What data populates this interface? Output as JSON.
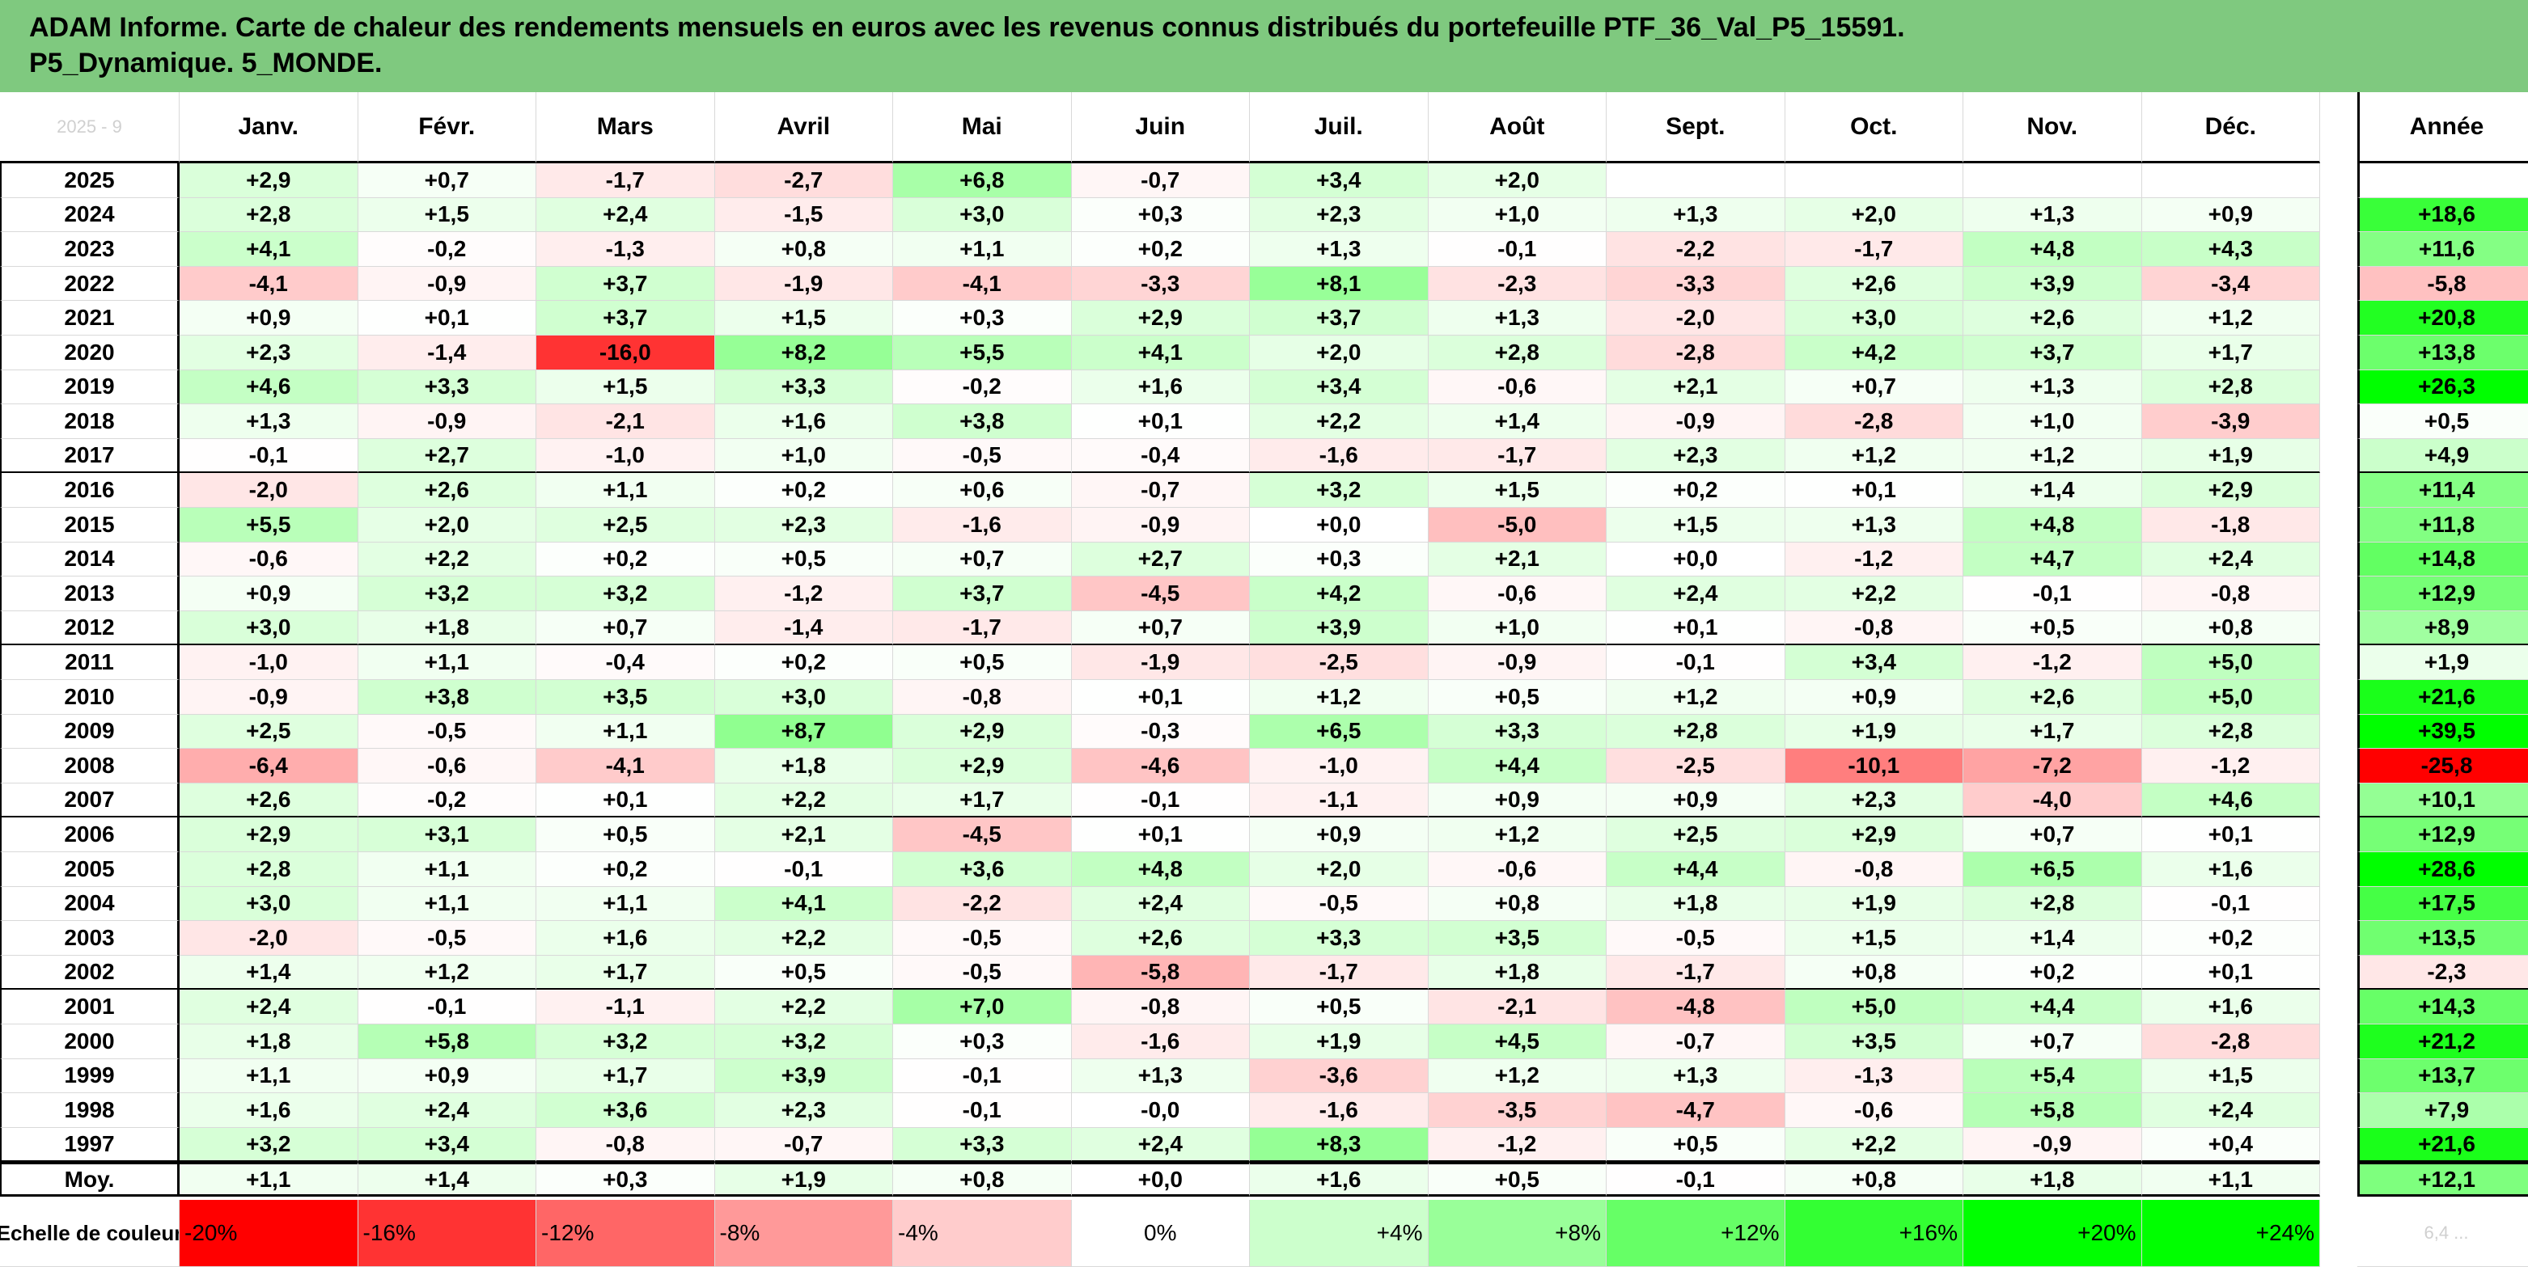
{
  "title": {
    "line1": "ADAM Informe. Carte de chaleur des rendements mensuels en euros avec les revenus connus distribués du portefeuille PTF_36_Val_P5_15591.",
    "line2": "P5_Dynamique. 5_MONDE."
  },
  "corner_text": "2025 - 9",
  "chart_data": {
    "type": "heatmap",
    "months": [
      "Janv.",
      "Févr.",
      "Mars",
      "Avril",
      "Mai",
      "Juin",
      "Juil.",
      "Août",
      "Sept.",
      "Oct.",
      "Nov.",
      "Déc."
    ],
    "annual_header": "Année",
    "rows": [
      {
        "year": "2025",
        "values": [
          "+2,9",
          "+0,7",
          "-1,7",
          "-2,7",
          "+6,8",
          "-0,7",
          "+3,4",
          "+2,0",
          "",
          "",
          "",
          ""
        ],
        "annual": ""
      },
      {
        "year": "2024",
        "values": [
          "+2,8",
          "+1,5",
          "+2,4",
          "-1,5",
          "+3,0",
          "+0,3",
          "+2,3",
          "+1,0",
          "+1,3",
          "+2,0",
          "+1,3",
          "+0,9"
        ],
        "annual": "+18,6"
      },
      {
        "year": "2023",
        "values": [
          "+4,1",
          "-0,2",
          "-1,3",
          "+0,8",
          "+1,1",
          "+0,2",
          "+1,3",
          "-0,1",
          "-2,2",
          "-1,7",
          "+4,8",
          "+4,3"
        ],
        "annual": "+11,6"
      },
      {
        "year": "2022",
        "values": [
          "-4,1",
          "-0,9",
          "+3,7",
          "-1,9",
          "-4,1",
          "-3,3",
          "+8,1",
          "-2,3",
          "-3,3",
          "+2,6",
          "+3,9",
          "-3,4"
        ],
        "annual": "-5,8"
      },
      {
        "year": "2021",
        "values": [
          "+0,9",
          "+0,1",
          "+3,7",
          "+1,5",
          "+0,3",
          "+2,9",
          "+3,7",
          "+1,3",
          "-2,0",
          "+3,0",
          "+2,6",
          "+1,2"
        ],
        "annual": "+20,8"
      },
      {
        "year": "2020",
        "values": [
          "+2,3",
          "-1,4",
          "-16,0",
          "+8,2",
          "+5,5",
          "+4,1",
          "+2,0",
          "+2,8",
          "-2,8",
          "+4,2",
          "+3,7",
          "+1,7"
        ],
        "annual": "+13,8"
      },
      {
        "year": "2019",
        "values": [
          "+4,6",
          "+3,3",
          "+1,5",
          "+3,3",
          "-0,2",
          "+1,6",
          "+3,4",
          "-0,6",
          "+2,1",
          "+0,7",
          "+1,3",
          "+2,8"
        ],
        "annual": "+26,3"
      },
      {
        "year": "2018",
        "values": [
          "+1,3",
          "-0,9",
          "-2,1",
          "+1,6",
          "+3,8",
          "+0,1",
          "+2,2",
          "+1,4",
          "-0,9",
          "-2,8",
          "+1,0",
          "-3,9"
        ],
        "annual": "+0,5"
      },
      {
        "year": "2017",
        "values": [
          "-0,1",
          "+2,7",
          "-1,0",
          "+1,0",
          "-0,5",
          "-0,4",
          "-1,6",
          "-1,7",
          "+2,3",
          "+1,2",
          "+1,2",
          "+1,9"
        ],
        "annual": "+4,9"
      },
      {
        "year": "2016",
        "values": [
          "-2,0",
          "+2,6",
          "+1,1",
          "+0,2",
          "+0,6",
          "-0,7",
          "+3,2",
          "+1,5",
          "+0,2",
          "+0,1",
          "+1,4",
          "+2,9"
        ],
        "annual": "+11,4"
      },
      {
        "year": "2015",
        "values": [
          "+5,5",
          "+2,0",
          "+2,5",
          "+2,3",
          "-1,6",
          "-0,9",
          "+0,0",
          "-5,0",
          "+1,5",
          "+1,3",
          "+4,8",
          "-1,8"
        ],
        "annual": "+11,8"
      },
      {
        "year": "2014",
        "values": [
          "-0,6",
          "+2,2",
          "+0,2",
          "+0,5",
          "+0,7",
          "+2,7",
          "+0,3",
          "+2,1",
          "+0,0",
          "-1,2",
          "+4,7",
          "+2,4"
        ],
        "annual": "+14,8"
      },
      {
        "year": "2013",
        "values": [
          "+0,9",
          "+3,2",
          "+3,2",
          "-1,2",
          "+3,7",
          "-4,5",
          "+4,2",
          "-0,6",
          "+2,4",
          "+2,2",
          "-0,1",
          "-0,8"
        ],
        "annual": "+12,9"
      },
      {
        "year": "2012",
        "values": [
          "+3,0",
          "+1,8",
          "+0,7",
          "-1,4",
          "-1,7",
          "+0,7",
          "+3,9",
          "+1,0",
          "+0,1",
          "-0,8",
          "+0,5",
          "+0,8"
        ],
        "annual": "+8,9"
      },
      {
        "year": "2011",
        "values": [
          "-1,0",
          "+1,1",
          "-0,4",
          "+0,2",
          "+0,5",
          "-1,9",
          "-2,5",
          "-0,9",
          "-0,1",
          "+3,4",
          "-1,2",
          "+5,0"
        ],
        "annual": "+1,9"
      },
      {
        "year": "2010",
        "values": [
          "-0,9",
          "+3,8",
          "+3,5",
          "+3,0",
          "-0,8",
          "+0,1",
          "+1,2",
          "+0,5",
          "+1,2",
          "+0,9",
          "+2,6",
          "+5,0"
        ],
        "annual": "+21,6"
      },
      {
        "year": "2009",
        "values": [
          "+2,5",
          "-0,5",
          "+1,1",
          "+8,7",
          "+2,9",
          "-0,3",
          "+6,5",
          "+3,3",
          "+2,8",
          "+1,9",
          "+1,7",
          "+2,8"
        ],
        "annual": "+39,5"
      },
      {
        "year": "2008",
        "values": [
          "-6,4",
          "-0,6",
          "-4,1",
          "+1,8",
          "+2,9",
          "-4,6",
          "-1,0",
          "+4,4",
          "-2,5",
          "-10,1",
          "-7,2",
          "-1,2"
        ],
        "annual": "-25,8"
      },
      {
        "year": "2007",
        "values": [
          "+2,6",
          "-0,2",
          "+0,1",
          "+2,2",
          "+1,7",
          "-0,1",
          "-1,1",
          "+0,9",
          "+0,9",
          "+2,3",
          "-4,0",
          "+4,6"
        ],
        "annual": "+10,1"
      },
      {
        "year": "2006",
        "values": [
          "+2,9",
          "+3,1",
          "+0,5",
          "+2,1",
          "-4,5",
          "+0,1",
          "+0,9",
          "+1,2",
          "+2,5",
          "+2,9",
          "+0,7",
          "+0,1"
        ],
        "annual": "+12,9"
      },
      {
        "year": "2005",
        "values": [
          "+2,8",
          "+1,1",
          "+0,2",
          "-0,1",
          "+3,6",
          "+4,8",
          "+2,0",
          "-0,6",
          "+4,4",
          "-0,8",
          "+6,5",
          "+1,6"
        ],
        "annual": "+28,6"
      },
      {
        "year": "2004",
        "values": [
          "+3,0",
          "+1,1",
          "+1,1",
          "+4,1",
          "-2,2",
          "+2,4",
          "-0,5",
          "+0,8",
          "+1,8",
          "+1,9",
          "+2,8",
          "-0,1"
        ],
        "annual": "+17,5"
      },
      {
        "year": "2003",
        "values": [
          "-2,0",
          "-0,5",
          "+1,6",
          "+2,2",
          "-0,5",
          "+2,6",
          "+3,3",
          "+3,5",
          "-0,5",
          "+1,5",
          "+1,4",
          "+0,2"
        ],
        "annual": "+13,5"
      },
      {
        "year": "2002",
        "values": [
          "+1,4",
          "+1,2",
          "+1,7",
          "+0,5",
          "-0,5",
          "-5,8",
          "-1,7",
          "+1,8",
          "-1,7",
          "+0,8",
          "+0,2",
          "+0,1"
        ],
        "annual": "-2,3"
      },
      {
        "year": "2001",
        "values": [
          "+2,4",
          "-0,1",
          "-1,1",
          "+2,2",
          "+7,0",
          "-0,8",
          "+0,5",
          "-2,1",
          "-4,8",
          "+5,0",
          "+4,4",
          "+1,6"
        ],
        "annual": "+14,3"
      },
      {
        "year": "2000",
        "values": [
          "+1,8",
          "+5,8",
          "+3,2",
          "+3,2",
          "+0,3",
          "-1,6",
          "+1,9",
          "+4,5",
          "-0,7",
          "+3,5",
          "+0,7",
          "-2,8"
        ],
        "annual": "+21,2"
      },
      {
        "year": "1999",
        "values": [
          "+1,1",
          "+0,9",
          "+1,7",
          "+3,9",
          "-0,1",
          "+1,3",
          "-3,6",
          "+1,2",
          "+1,3",
          "-1,3",
          "+5,4",
          "+1,5"
        ],
        "annual": "+13,7"
      },
      {
        "year": "1998",
        "values": [
          "+1,6",
          "+2,4",
          "+3,6",
          "+2,3",
          "-0,1",
          "-0,0",
          "-1,6",
          "-3,5",
          "-4,7",
          "-0,6",
          "+5,8",
          "+2,4"
        ],
        "annual": "+7,9"
      },
      {
        "year": "1997",
        "values": [
          "+3,2",
          "+3,4",
          "-0,8",
          "-0,7",
          "+3,3",
          "+2,4",
          "+8,3",
          "-1,2",
          "+0,5",
          "+2,2",
          "-0,9",
          "+0,4"
        ],
        "annual": "+21,6"
      }
    ],
    "average": {
      "label": "Moy.",
      "values": [
        "+1,1",
        "+1,4",
        "+0,3",
        "+1,9",
        "+0,8",
        "+0,0",
        "+1,6",
        "+0,5",
        "-0,1",
        "+0,8",
        "+1,8",
        "+1,1"
      ],
      "annual": "+12,1"
    },
    "scale": {
      "label": "Echelle de couleur",
      "items": [
        "-20%",
        "-16%",
        "-12%",
        "-8%",
        "-4%",
        "0%",
        "+4%",
        "+8%",
        "+12%",
        "+16%",
        "+20%",
        "+24%"
      ],
      "colors": [
        "#ff0000",
        "#ff3333",
        "#ff6666",
        "#ff9999",
        "#ffcccc",
        "#ffffff",
        "#ccffcc",
        "#99ff99",
        "#66ff66",
        "#33ff33",
        "#00ff00",
        "#00ff00"
      ]
    },
    "scale_extra_faint": "6,4 ..."
  }
}
